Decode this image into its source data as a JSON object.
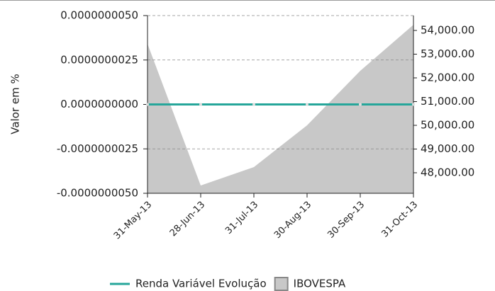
{
  "chart_data": {
    "type": "line",
    "y_label": "Valor em %",
    "categories": [
      "31-May-13",
      "28-Jun-13",
      "31-Jul-13",
      "30-Aug-13",
      "30-Sep-13",
      "31-Oct-13"
    ],
    "ylim": [
      -5e-09,
      5e-09
    ],
    "yticks": [
      {
        "value": -5e-09,
        "label": "-0.0000000050"
      },
      {
        "value": -2.5e-09,
        "label": "-0.0000000025"
      },
      {
        "value": 0,
        "label": "0.0000000000"
      },
      {
        "value": 2.5e-09,
        "label": "0.0000000025"
      },
      {
        "value": 5e-09,
        "label": "0.0000000050"
      }
    ],
    "y2lim": [
      47134,
      54627
    ],
    "y2ticks": [
      {
        "value": 48000,
        "label": "48,000.00"
      },
      {
        "value": 49000,
        "label": "49,000.00"
      },
      {
        "value": 50000,
        "label": "50,000.00"
      },
      {
        "value": 51000,
        "label": "51,000.00"
      },
      {
        "value": 52000,
        "label": "52,000.00"
      },
      {
        "value": 53000,
        "label": "53,000.00"
      },
      {
        "value": 54000,
        "label": "54,000.00"
      }
    ],
    "grid": true,
    "legend": "bottom",
    "series": [
      {
        "name": "Renda Variável Evolução",
        "type": "line",
        "color": "#26a69a",
        "values": [
          0,
          0,
          0,
          0,
          0,
          0
        ]
      },
      {
        "name": "IBOVESPA",
        "type": "area",
        "axis": "y2",
        "color": "#c8c8c8",
        "values": [
          53433,
          47463,
          48239,
          50000,
          52299,
          54239
        ]
      }
    ]
  }
}
